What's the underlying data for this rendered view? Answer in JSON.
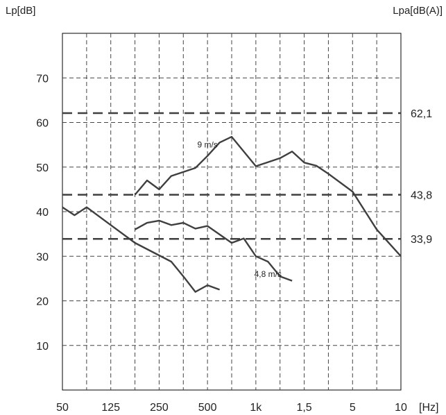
{
  "chart_data": {
    "type": "line",
    "ylabel_left": "Lp[dB]",
    "ylabel_right": "Lpa[dB(A)]",
    "xunit": "[Hz]",
    "ylim": [
      0,
      80
    ],
    "x_tick_labels": [
      "50",
      "125",
      "250",
      "500",
      "1k",
      "1,5",
      "5",
      "10"
    ],
    "y_ticks": [
      10,
      20,
      30,
      40,
      50,
      60,
      70
    ],
    "reference_lines": [
      {
        "value": 62.1,
        "label": "62,1"
      },
      {
        "value": 43.8,
        "label": "43,8"
      },
      {
        "value": 33.9,
        "label": "33,9"
      }
    ],
    "series": [
      {
        "name": "9 m/s",
        "label_index": 5,
        "points": [
          [
            3,
            43.8
          ],
          [
            3.5,
            47
          ],
          [
            4,
            45
          ],
          [
            4.5,
            48
          ],
          [
            5.5,
            49.8
          ],
          [
            6,
            52.5
          ],
          [
            6.5,
            55.5
          ],
          [
            7,
            56.8
          ],
          [
            8,
            50.2
          ],
          [
            9,
            52
          ],
          [
            9.5,
            53.5
          ],
          [
            10,
            51
          ],
          [
            10.5,
            50.3
          ],
          [
            11,
            48.5
          ],
          [
            12,
            44.5
          ],
          [
            13,
            36
          ],
          [
            14,
            30
          ]
        ]
      },
      {
        "name": "4,8 m/s",
        "label_index": 10,
        "points": [
          [
            3,
            36
          ],
          [
            3.5,
            37.5
          ],
          [
            4,
            38
          ],
          [
            4.5,
            37
          ],
          [
            5,
            37.5
          ],
          [
            5.5,
            36.2
          ],
          [
            6,
            36.8
          ],
          [
            7,
            33
          ],
          [
            7.5,
            34
          ],
          [
            8,
            30
          ],
          [
            8.5,
            28.8
          ],
          [
            9,
            25.5
          ],
          [
            9.5,
            24.5
          ]
        ]
      },
      {
        "name": "",
        "points": [
          [
            0,
            41
          ],
          [
            0.5,
            39.2
          ],
          [
            1,
            41
          ],
          [
            2,
            37
          ],
          [
            3,
            33
          ],
          [
            4,
            30.2
          ],
          [
            4.5,
            28.8
          ],
          [
            5,
            25.5
          ],
          [
            5.5,
            22
          ],
          [
            6,
            23.5
          ],
          [
            6.5,
            22.5
          ]
        ]
      }
    ]
  },
  "colors": {
    "line": "#3f3f3f",
    "grid": "#444444",
    "frame": "#000000"
  }
}
